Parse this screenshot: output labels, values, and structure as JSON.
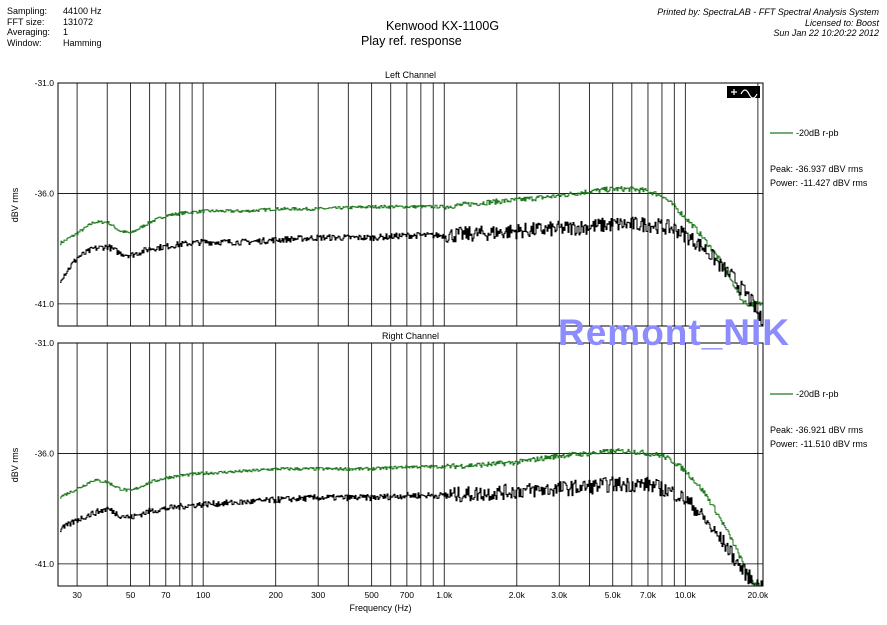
{
  "header": {
    "meta": [
      {
        "label": "Sampling:",
        "value": "44100 Hz"
      },
      {
        "label": "FFT size:",
        "value": "131072"
      },
      {
        "label": "Averaging:",
        "value": "1"
      },
      {
        "label": "Window:",
        "value": "Hamming"
      }
    ],
    "title": "Kenwood KX-1100G",
    "subtitle": "Play ref. response",
    "printed_by": "Printed by: SpectraLAB - FFT Spectral Analysis System",
    "licensed_to": "Licensed to: Boost",
    "date": "Sun Jan 22 10:20:22 2012"
  },
  "watermark": "Remont_NIK",
  "colors": {
    "green": "#1f7a1f",
    "black": "#000000",
    "grid": "#000000",
    "watermark": "#8c8cff"
  },
  "chart_data": [
    {
      "type": "line",
      "title": "Left Channel",
      "ylabel": "dBV rms",
      "xscale": "log",
      "xlim": [
        25,
        21000
      ],
      "ylim": [
        -42,
        -31
      ],
      "y_ticks": [
        -31.0,
        -36.0,
        -41.0
      ],
      "y_tick_labels": [
        "-31.0",
        "-36.0",
        "-41.0"
      ],
      "grid": true,
      "legend_placement": "right",
      "legend": "-20dB r-pb",
      "peak": "Peak: -36.937 dBV rms",
      "power": "Power: -11.427 dBV rms",
      "series": [
        {
          "name": "-20dB r-pb",
          "color": "#1f7a1f",
          "x": [
            25,
            30,
            35,
            40,
            45,
            50,
            60,
            70,
            80,
            100,
            150,
            200,
            300,
            500,
            700,
            1000,
            1500,
            2000,
            3000,
            4000,
            5000,
            6000,
            7000,
            8000,
            9000,
            10000,
            11000,
            12000,
            13000,
            14000,
            15000,
            16000,
            17000,
            18000,
            19000,
            20000,
            21000
          ],
          "y": [
            -38.3,
            -37.8,
            -37.3,
            -37.3,
            -37.7,
            -37.8,
            -37.3,
            -37.0,
            -36.9,
            -36.8,
            -36.8,
            -36.7,
            -36.7,
            -36.6,
            -36.6,
            -36.6,
            -36.4,
            -36.3,
            -36.1,
            -35.9,
            -35.8,
            -35.8,
            -35.9,
            -36.1,
            -36.6,
            -37.1,
            -37.6,
            -38.1,
            -38.6,
            -39.1,
            -39.7,
            -40.2,
            -40.8,
            -41.0,
            -41.0,
            -41.0,
            -41.0
          ]
        },
        {
          "name": "black",
          "color": "#000000",
          "x": [
            25,
            30,
            35,
            40,
            45,
            50,
            60,
            70,
            80,
            100,
            150,
            200,
            300,
            500,
            700,
            1000,
            1500,
            2000,
            3000,
            4000,
            5000,
            6000,
            7000,
            8000,
            9000,
            10000,
            11000,
            12000,
            13000,
            14000,
            15000,
            16000,
            17000,
            18000,
            19000,
            20000,
            21000
          ],
          "y": [
            -40.0,
            -38.9,
            -38.5,
            -38.4,
            -38.7,
            -38.8,
            -38.5,
            -38.4,
            -38.3,
            -38.2,
            -38.2,
            -38.1,
            -38.0,
            -38.0,
            -37.9,
            -37.9,
            -37.8,
            -37.7,
            -37.6,
            -37.5,
            -37.4,
            -37.4,
            -37.4,
            -37.5,
            -37.6,
            -37.9,
            -38.2,
            -38.5,
            -38.9,
            -39.3,
            -39.6,
            -39.9,
            -40.3,
            -40.6,
            -41.0,
            -41.5,
            -41.9
          ]
        }
      ]
    },
    {
      "type": "line",
      "title": "Right Channel",
      "ylabel": "dBV rms",
      "xlabel": "Frequency (Hz)",
      "xscale": "log",
      "xlim": [
        25,
        21000
      ],
      "ylim": [
        -42,
        -31
      ],
      "x_ticks": [
        30,
        50,
        70,
        100,
        200,
        300,
        500,
        700,
        1000,
        2000,
        3000,
        5000,
        7000,
        10000,
        20000
      ],
      "x_tick_labels": [
        "30",
        "50",
        "70",
        "100",
        "200",
        "300",
        "500",
        "700",
        "1.0k",
        "2.0k",
        "3.0k",
        "5.0k",
        "7.0k",
        "10.0k",
        "20.0k"
      ],
      "y_ticks": [
        -31.0,
        -36.0,
        -41.0
      ],
      "y_tick_labels": [
        "-31.0",
        "-36.0",
        "-41.0"
      ],
      "grid": true,
      "legend_placement": "right",
      "legend": "-20dB r-pb",
      "peak": "Peak: -36.921 dBV rms",
      "power": "Power: -11.510 dBV rms",
      "series": [
        {
          "name": "-20dB r-pb",
          "color": "#1f7a1f",
          "x": [
            25,
            30,
            35,
            40,
            45,
            50,
            60,
            70,
            80,
            100,
            150,
            200,
            300,
            500,
            700,
            1000,
            1500,
            2000,
            3000,
            4000,
            5000,
            6000,
            7000,
            8000,
            9000,
            10000,
            11000,
            12000,
            13000,
            14000,
            15000,
            16000,
            17000,
            18000,
            19000,
            20000,
            21000
          ],
          "y": [
            -38.0,
            -37.6,
            -37.2,
            -37.3,
            -37.6,
            -37.7,
            -37.3,
            -37.1,
            -37.0,
            -36.9,
            -36.8,
            -36.7,
            -36.7,
            -36.7,
            -36.6,
            -36.6,
            -36.5,
            -36.4,
            -36.1,
            -36.0,
            -35.9,
            -35.9,
            -36.0,
            -36.1,
            -36.4,
            -36.8,
            -37.3,
            -37.8,
            -38.4,
            -39.0,
            -39.6,
            -40.2,
            -40.8,
            -41.4,
            -41.8,
            -42.0,
            -42.0
          ]
        },
        {
          "name": "black",
          "color": "#000000",
          "x": [
            25,
            30,
            35,
            40,
            45,
            50,
            60,
            70,
            80,
            100,
            150,
            200,
            300,
            500,
            700,
            1000,
            1500,
            2000,
            3000,
            4000,
            5000,
            6000,
            7000,
            8000,
            9000,
            10000,
            11000,
            12000,
            13000,
            14000,
            15000,
            16000,
            17000,
            18000,
            19000,
            20000,
            21000
          ],
          "y": [
            -39.5,
            -39.0,
            -38.7,
            -38.5,
            -38.8,
            -38.9,
            -38.6,
            -38.5,
            -38.4,
            -38.3,
            -38.2,
            -38.1,
            -38.0,
            -38.0,
            -37.9,
            -37.9,
            -37.8,
            -37.7,
            -37.6,
            -37.5,
            -37.4,
            -37.4,
            -37.4,
            -37.6,
            -37.8,
            -38.1,
            -38.5,
            -39.0,
            -39.5,
            -39.9,
            -40.3,
            -40.8,
            -41.2,
            -41.5,
            -41.8,
            -42.0,
            -42.0
          ]
        }
      ]
    }
  ]
}
